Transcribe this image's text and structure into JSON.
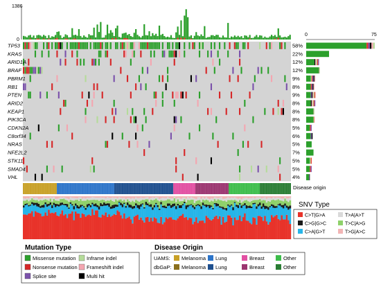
{
  "chart_data": {
    "type": "heatmap",
    "top_axis": {
      "max_label": "1386",
      "min_label": "0"
    },
    "right_axis": {
      "min_label": "0",
      "max_label": "75"
    },
    "genes": [
      {
        "name": "TP53",
        "pct": "58%",
        "bar": {
          "green": 66,
          "other": 9
        }
      },
      {
        "name": "KRAS",
        "pct": "22%",
        "bar": {
          "green": 25,
          "other": 0
        }
      },
      {
        "name": "ARID1A",
        "pct": "12%",
        "bar": {
          "green": 9,
          "other": 5
        }
      },
      {
        "name": "BRAF",
        "pct": "12%",
        "bar": {
          "green": 14,
          "other": 1
        }
      },
      {
        "name": "PBRM1",
        "pct": "9%",
        "bar": {
          "green": 5,
          "other": 5
        }
      },
      {
        "name": "RB1",
        "pct": "8%",
        "bar": {
          "green": 5,
          "other": 4
        }
      },
      {
        "name": "PTEN",
        "pct": "9%",
        "bar": {
          "green": 5,
          "other": 5
        }
      },
      {
        "name": "ARID2",
        "pct": "8%",
        "bar": {
          "green": 5,
          "other": 5
        }
      },
      {
        "name": "KEAP1",
        "pct": "8%",
        "bar": {
          "green": 8,
          "other": 1
        }
      },
      {
        "name": "PIK3CA",
        "pct": "8%",
        "bar": {
          "green": 8,
          "other": 1
        }
      },
      {
        "name": "CDKN2A",
        "pct": "5%",
        "bar": {
          "green": 4,
          "other": 2
        }
      },
      {
        "name": "C8orf34",
        "pct": "6%",
        "bar": {
          "green": 5,
          "other": 2
        }
      },
      {
        "name": "NRAS",
        "pct": "5%",
        "bar": {
          "green": 6,
          "other": 0
        }
      },
      {
        "name": "NFE2L2",
        "pct": "7%",
        "bar": {
          "green": 8,
          "other": 0
        }
      },
      {
        "name": "STK11",
        "pct": "5%",
        "bar": {
          "green": 4,
          "other": 2
        }
      },
      {
        "name": "SMAD4",
        "pct": "5%",
        "bar": {
          "green": 4,
          "other": 2
        }
      },
      {
        "name": "VHL",
        "pct": "4%",
        "bar": {
          "green": 3,
          "other": 1
        }
      }
    ],
    "disease_origin_label": "Disease origin",
    "snv_legend": {
      "title": "SNV Type",
      "items": [
        {
          "label": "C>T|G>A",
          "color": "#e8332a"
        },
        {
          "label": "T>A|A>T",
          "color": "#d9d9d9"
        },
        {
          "label": "C>G|G>C",
          "color": "#1a1a1a"
        },
        {
          "label": "T>C|A>G",
          "color": "#8fd16a"
        },
        {
          "label": "C>A|G>T",
          "color": "#27b5e8"
        },
        {
          "label": "T>G|A>C",
          "color": "#f2b5b5"
        }
      ]
    },
    "mutation_legend": {
      "title": "Mutation Type",
      "items": [
        {
          "label": "Missense mutation",
          "color": "#2ca02c"
        },
        {
          "label": "Inframe indel",
          "color": "#b5dc9a"
        },
        {
          "label": "Nonsense mutation",
          "color": "#d62728"
        },
        {
          "label": "Frameshift indel",
          "color": "#f4a6b0"
        },
        {
          "label": "Splice site",
          "color": "#7b52ab"
        },
        {
          "label": "Multi hit",
          "color": "#000000"
        }
      ]
    },
    "origin_legend": {
      "title": "Disease Origin",
      "rows": [
        {
          "source": "UAMS:",
          "items": [
            {
              "label": "Melanoma",
              "color": "#c8a026"
            },
            {
              "label": "Lung",
              "color": "#2c74c9"
            },
            {
              "label": "Breast",
              "color": "#e24fa2"
            },
            {
              "label": "Other",
              "color": "#3dbd4a"
            }
          ]
        },
        {
          "source": "dbGaP:",
          "items": [
            {
              "label": "Melanoma",
              "color": "#8a6f1c"
            },
            {
              "label": "Lung",
              "color": "#1e4f8e"
            },
            {
              "label": "Breast",
              "color": "#9b3570"
            },
            {
              "label": "Other",
              "color": "#2a7d34"
            }
          ]
        }
      ]
    },
    "colors": {
      "grid_bg": "#d4d4d4",
      "missense": "#2ca02c",
      "nonsense": "#d62728",
      "splice": "#7b52ab",
      "inframe": "#b5dc9a",
      "frameshift": "#f4a6b0",
      "multihit": "#000000"
    }
  }
}
